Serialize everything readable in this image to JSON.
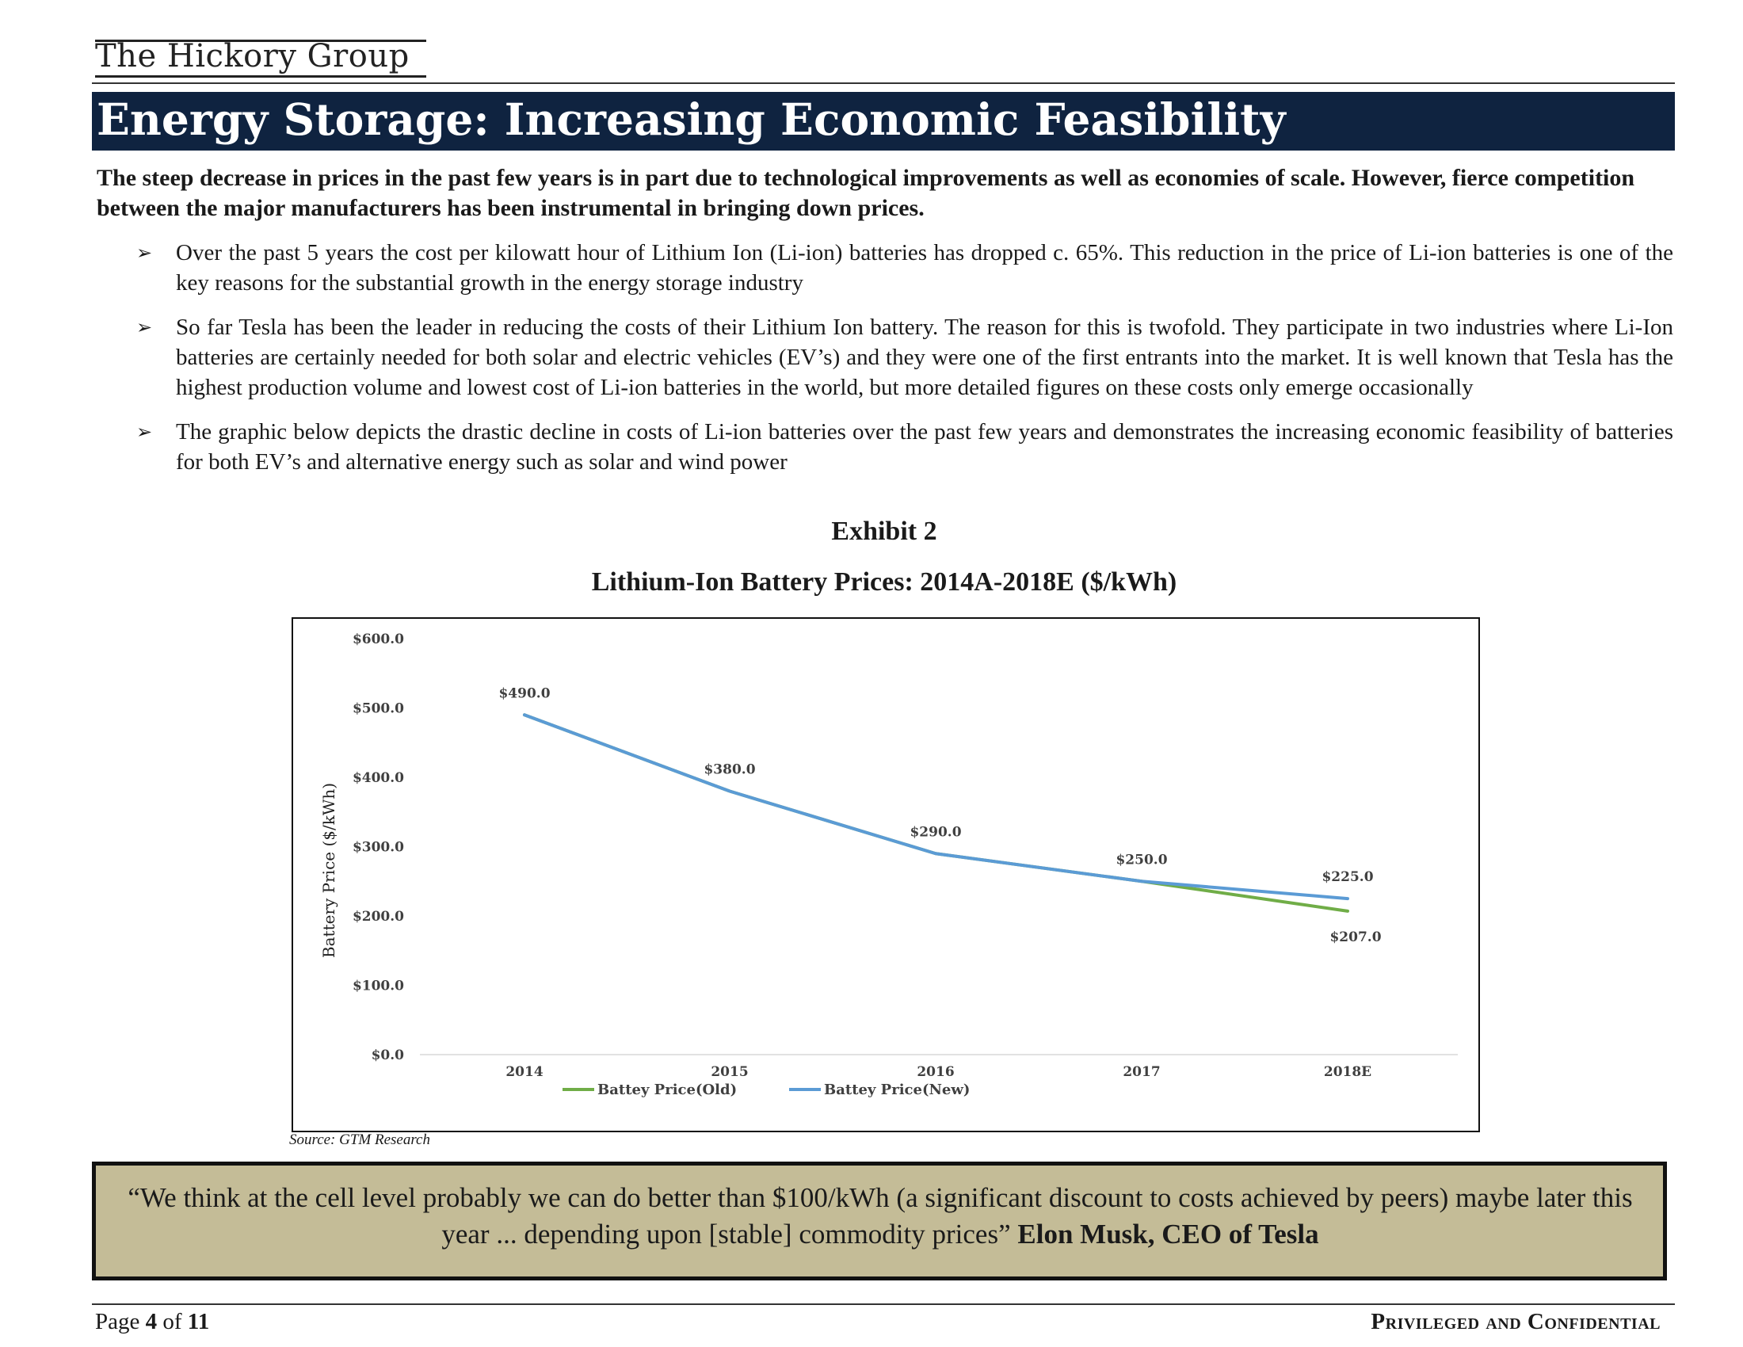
{
  "header": {
    "brand": "The Hickory Group",
    "title": "Energy Storage: Increasing Economic Feasibility"
  },
  "lead": "The steep decrease in prices in the past few years is in part due to technological improvements as well as economies of scale. However, fierce competition between the major manufacturers has been instrumental in bringing down prices.",
  "bullets": [
    "Over the past 5 years the cost per kilowatt hour of Lithium Ion (Li-ion) batteries has dropped c. 65%. This reduction in the price of Li-ion batteries is one of the key reasons for the substantial growth in the energy storage industry",
    "So far Tesla has been the leader in reducing the costs of their Lithium Ion battery. The reason for this is twofold. They participate in two industries where Li-Ion batteries are certainly needed for both solar and electric vehicles (EV’s) and they were one of the first entrants into the market. It is well known that Tesla has the highest production volume and lowest cost of Li-ion batteries in the world, but more detailed figures on these costs only emerge occasionally",
    "The graphic below depicts the drastic decline in costs of Li-ion batteries over the past few years and demonstrates the increasing economic feasibility of batteries for both EV’s and alternative energy such as solar and wind power"
  ],
  "exhibit": "Exhibit 2",
  "chart_data": {
    "type": "line",
    "title": "Lithium-Ion Battery Prices: 2014A-2018E ($/kWh)",
    "xlabel": "",
    "ylabel": "Battery Price ($/kWh)",
    "categories": [
      "2014",
      "2015",
      "2016",
      "2017",
      "2018E"
    ],
    "ylim": [
      0,
      600
    ],
    "yticks": [
      "$0.0",
      "$100.0",
      "$200.0",
      "$300.0",
      "$400.0",
      "$500.0",
      "$600.0"
    ],
    "ytick_values": [
      0,
      100,
      200,
      300,
      400,
      500,
      600
    ],
    "grid": false,
    "legend_position": "bottom",
    "series": [
      {
        "name": "Battey Price(Old)",
        "color": "#70ad47",
        "values": [
          490,
          380,
          290,
          250,
          207
        ],
        "labels": [
          "",
          "",
          "",
          "",
          "$207.0"
        ]
      },
      {
        "name": "Battey Price(New)",
        "color": "#5b9bd5",
        "values": [
          490,
          380,
          290,
          250,
          225
        ],
        "labels": [
          "$490.0",
          "$380.0",
          "$290.0",
          "$250.0",
          "$225.0"
        ]
      }
    ]
  },
  "source": "Source: GTM Research",
  "quote": {
    "text": "“We think at the cell level probably we can do better than $100/kWh (a significant discount to costs achieved by peers) maybe later this year ... depending upon [stable] commodity prices” ",
    "attribution": "Elon Musk, CEO of Tesla"
  },
  "footer": {
    "page_prefix": "Page ",
    "page_number": "4",
    "page_of": " of ",
    "page_total": "11",
    "confidential": "Privileged and Confidential"
  }
}
